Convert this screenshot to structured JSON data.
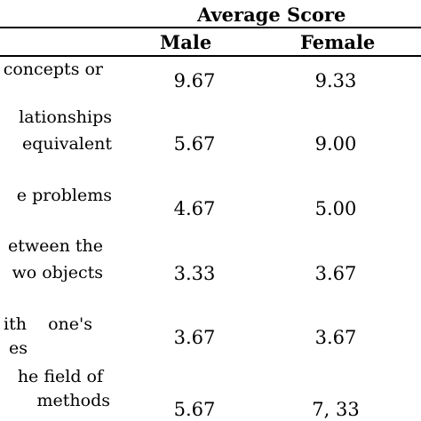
{
  "header": {
    "group_title": "Average Score",
    "male_label": "Male",
    "female_label": "Female"
  },
  "rows": [
    {
      "desc_lines": [
        "concepts or"
      ],
      "male": "9.67",
      "female": "9.33"
    },
    {
      "desc_lines": [
        "lationships",
        "equivalent"
      ],
      "male": "5.67",
      "female": "9.00"
    },
    {
      "desc_lines": [
        "e problems"
      ],
      "male": "4.67",
      "female": "5.00"
    },
    {
      "desc_lines": [
        "etween the",
        "wo objects"
      ],
      "male": "3.33",
      "female": "3.67"
    },
    {
      "desc_lines": [
        "ith    one's",
        "es"
      ],
      "male": "3.67",
      "female": "3.67"
    },
    {
      "desc_lines": [
        "he field of",
        "methods"
      ],
      "male": "5.67",
      "female": "7, 33"
    }
  ]
}
